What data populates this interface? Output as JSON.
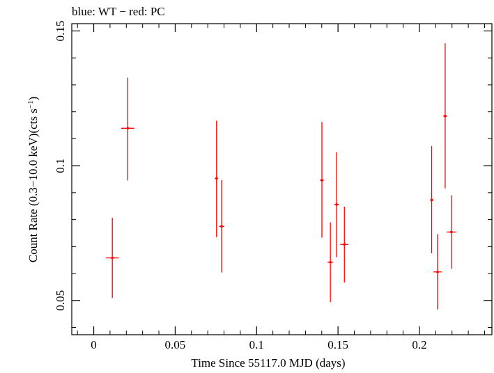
{
  "chart_data": {
    "type": "scatter",
    "title": "blue: WT − red: PC",
    "xlabel": "Time Since 55117.0 MJD (days)",
    "ylabel_main": "Count Rate (0.3−10.0 keV)(cts s",
    "ylabel_sup": "−1",
    "ylabel_close": ")",
    "xlim": [
      -0.0135,
      0.2445
    ],
    "ylim": [
      0.0373,
      0.1527
    ],
    "xticks": [
      0,
      0.05,
      0.1,
      0.15,
      0.2
    ],
    "xtick_labels": [
      "0",
      "0.05",
      "0.1",
      "0.15",
      "0.2"
    ],
    "yticks": [
      0.05,
      0.1,
      0.15
    ],
    "ytick_labels": [
      "0.05",
      "0.1",
      "0.15"
    ],
    "x_minor_step": 0.01,
    "y_minor_step": 0.01,
    "series": [
      {
        "name": "PC",
        "color": "#ff0000",
        "points": [
          {
            "x": 0.0114,
            "y": 0.0658,
            "xerr": 0.004,
            "yerr_low": 0.0149,
            "yerr_high": 0.0149
          },
          {
            "x": 0.0209,
            "y": 0.1139,
            "xerr": 0.004,
            "yerr_low": 0.0194,
            "yerr_high": 0.0188
          },
          {
            "x": 0.0754,
            "y": 0.0953,
            "xerr": 0.001,
            "yerr_low": 0.0218,
            "yerr_high": 0.0214
          },
          {
            "x": 0.0785,
            "y": 0.0775,
            "xerr": 0.0016,
            "yerr_low": 0.0171,
            "yerr_high": 0.0171
          },
          {
            "x": 0.1401,
            "y": 0.0946,
            "xerr": 0.0012,
            "yerr_low": 0.0213,
            "yerr_high": 0.0216
          },
          {
            "x": 0.1453,
            "y": 0.0642,
            "xerr": 0.0018,
            "yerr_low": 0.0148,
            "yerr_high": 0.0148
          },
          {
            "x": 0.1491,
            "y": 0.0856,
            "xerr": 0.0015,
            "yerr_low": 0.0195,
            "yerr_high": 0.0194
          },
          {
            "x": 0.1539,
            "y": 0.0708,
            "xerr": 0.0025,
            "yerr_low": 0.0141,
            "yerr_high": 0.014
          },
          {
            "x": 0.2075,
            "y": 0.0873,
            "xerr": 0.001,
            "yerr_low": 0.0198,
            "yerr_high": 0.02
          },
          {
            "x": 0.2111,
            "y": 0.0606,
            "xerr": 0.0026,
            "yerr_low": 0.0139,
            "yerr_high": 0.014
          },
          {
            "x": 0.2158,
            "y": 0.1184,
            "xerr": 0.0012,
            "yerr_low": 0.0268,
            "yerr_high": 0.027
          },
          {
            "x": 0.2196,
            "y": 0.0754,
            "xerr": 0.003,
            "yerr_low": 0.0136,
            "yerr_high": 0.0136
          }
        ]
      }
    ]
  }
}
